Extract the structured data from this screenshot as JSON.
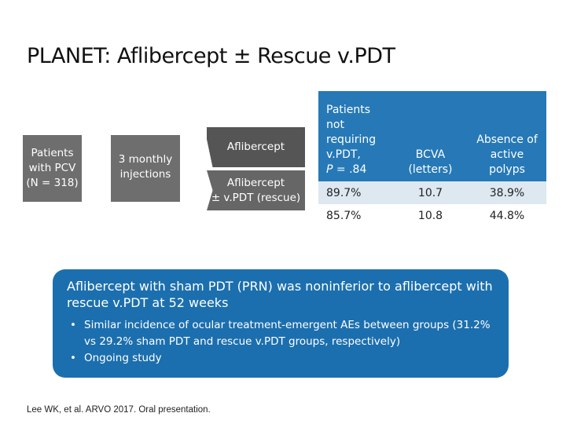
{
  "slide": {
    "title": "PLANET: Aflibercept ± Rescue v.PDT",
    "reference": "Lee WK, et al. ARVO 2017. Oral presentation."
  },
  "flow": {
    "patients_line1": "Patients",
    "patients_line2": "with PCV",
    "patients_line3": "(N = 318)",
    "injections_line1": "3 monthly",
    "injections_line2": "injections",
    "arm1": "Aflibercept",
    "arm2_line1": "Aflibercept",
    "arm2_line2": "± v.PDT (rescue)"
  },
  "table": {
    "headers": {
      "col1_lines": [
        "Patients",
        "not",
        "requiring",
        "v.PDT,"
      ],
      "col1_stat_prefix": "P",
      "col1_stat_value": " = .84",
      "col2_line1": "BCVA",
      "col2_line2": "(letters)",
      "col3_line1": "Absence of",
      "col3_line2": "active",
      "col3_line3": "polyps"
    },
    "rows": [
      {
        "patients_not_requiring": "89.7%",
        "bcva": "10.7",
        "absence_polyps": "38.9%"
      },
      {
        "patients_not_requiring": "85.7%",
        "bcva": "10.8",
        "absence_polyps": "44.8%"
      }
    ]
  },
  "callout": {
    "lead": "Aflibercept with sham PDT (PRN) was noninferior to aflibercept with rescue v.PDT at 52 weeks",
    "bullets": [
      "Similar incidence of ocular treatment-emergent AEs between groups (31.2% vs 29.2% sham PDT and rescue v.PDT groups, respectively)",
      "Ongoing study"
    ]
  },
  "colors": {
    "header_blue": "#2679b6",
    "callout_blue": "#1c6fae",
    "flow_gray": "#6e6e6e"
  }
}
